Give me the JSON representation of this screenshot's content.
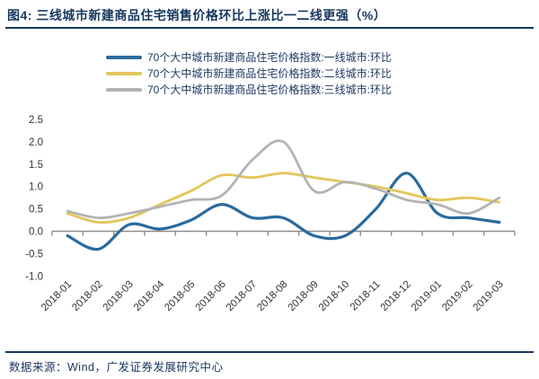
{
  "header": {
    "figure_title": "图4:  三线城市新建商品住宅销售价格环比上涨比一二线更强（%）"
  },
  "legend": {
    "items": [
      {
        "label": "70个大中城市新建商品住宅价格指数:一线城市:环比",
        "color": "#2a6a9e"
      },
      {
        "label": "70个大中城市新建商品住宅价格指数:二线城市:环比",
        "color": "#e3c65a"
      },
      {
        "label": "70个大中城市新建商品住宅价格指数:三线城市:环比",
        "color": "#b3b3b3"
      }
    ]
  },
  "footer": {
    "source": "数据来源：Wind，广发证券发展研究中心"
  },
  "colors": {
    "accent_navy": "#17375e",
    "axis_gray": "#8c8c8c",
    "tick_text": "#333333",
    "tier1_blue": "#2a6a9e",
    "tier2_yellow": "#e3c65a",
    "tier3_gray": "#b3b3b3"
  },
  "chart_data": {
    "type": "line",
    "smooth": true,
    "grid": false,
    "legend_position": "top",
    "title": "三线城市新建商品住宅销售价格环比上涨比一二线更强（%）",
    "xlabel": "",
    "ylabel": "",
    "ylim": [
      -1.0,
      2.5
    ],
    "ytick_step": 0.5,
    "yticks": [
      "2.5",
      "2.0",
      "1.5",
      "1.0",
      "0.5",
      "0.0",
      "-0.5",
      "-1.0"
    ],
    "ytick_values": [
      2.5,
      2.0,
      1.5,
      1.0,
      0.5,
      0.0,
      -0.5,
      -1.0
    ],
    "categories": [
      "2018-01",
      "2018-02",
      "2018-03",
      "2018-04",
      "2018-05",
      "2018-06",
      "2018-07",
      "2018-08",
      "2018-09",
      "2018-10",
      "2018-11",
      "2018-12",
      "2019-01",
      "2019-02",
      "2019-03"
    ],
    "series": [
      {
        "name": "70个大中城市新建商品住宅价格指数:一线城市:环比",
        "color": "#2a6a9e",
        "stroke_width": 3.2,
        "values": [
          -0.1,
          -0.4,
          0.15,
          0.05,
          0.25,
          0.6,
          0.3,
          0.3,
          -0.1,
          -0.1,
          0.5,
          1.3,
          0.4,
          0.3,
          0.2
        ]
      },
      {
        "name": "70个大中城市新建商品住宅价格指数:二线城市:环比",
        "color": "#e3c65a",
        "stroke_width": 2.8,
        "values": [
          0.4,
          0.2,
          0.3,
          0.6,
          0.9,
          1.25,
          1.2,
          1.3,
          1.2,
          1.1,
          1.0,
          0.85,
          0.7,
          0.75,
          0.65
        ]
      },
      {
        "name": "70个大中城市新建商品住宅价格指数:三线城市:环比",
        "color": "#b3b3b3",
        "stroke_width": 2.8,
        "values": [
          0.45,
          0.3,
          0.4,
          0.55,
          0.7,
          0.8,
          1.6,
          2.0,
          0.9,
          1.1,
          0.95,
          0.7,
          0.6,
          0.4,
          0.75
        ]
      }
    ]
  }
}
